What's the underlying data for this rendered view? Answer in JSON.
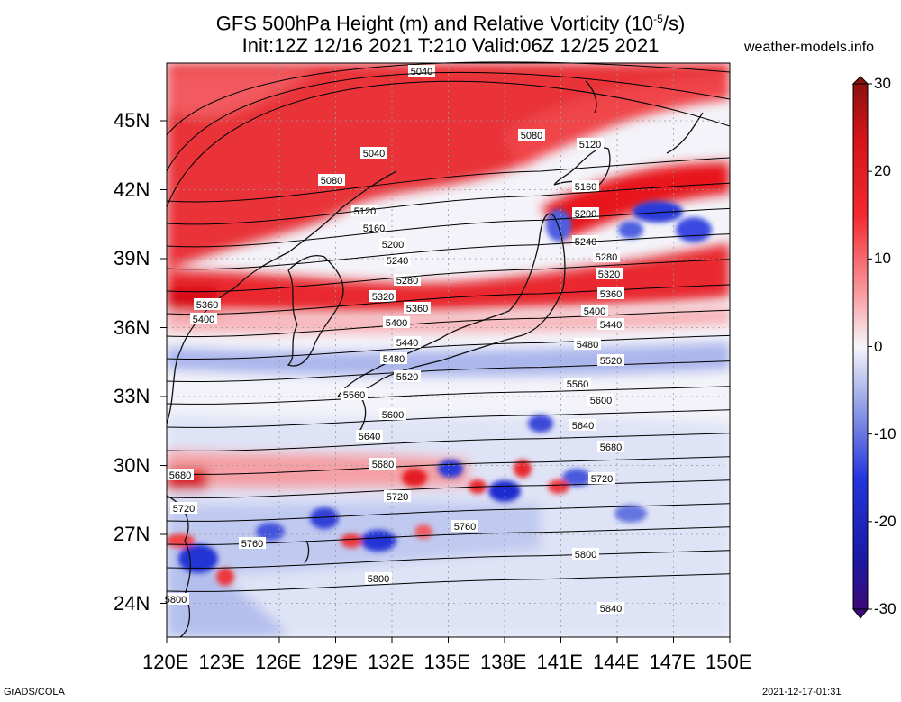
{
  "title_line1": "GFS 500hPa Height (m) and Relative Vorticity (10",
  "title_sup": "-5",
  "title_unit_tail": "/s)",
  "title_line2": "Init:12Z 12/16 2021 T:210 Valid:06Z 12/25 2021",
  "site": "weather-models.info",
  "credit_left": "GrADS/COLA",
  "credit_right": "2021-12-17-01:31",
  "lat_labels": [
    "45N",
    "42N",
    "39N",
    "36N",
    "33N",
    "30N",
    "27N",
    "24N"
  ],
  "lon_labels": [
    "120E",
    "123E",
    "126E",
    "129E",
    "132E",
    "135E",
    "138E",
    "141E",
    "144E",
    "147E",
    "150E"
  ],
  "colorbar_labels": [
    "30",
    "20",
    "10",
    "0",
    "-10",
    "-20",
    "-30"
  ],
  "colors": {
    "red_strong": "#e8141c",
    "red_mid": "#f4787c",
    "red_light": "#fcd4d6",
    "neutral": "#f4f4fa",
    "blue_light": "#cfd6f2",
    "blue_mid": "#6e82dc",
    "blue_strong": "#1c2ad0"
  },
  "contours": [
    {
      "label": "5040"
    },
    {
      "label": "5080"
    },
    {
      "label": "5120"
    },
    {
      "label": "5160"
    },
    {
      "label": "5200"
    },
    {
      "label": "5240"
    },
    {
      "label": "5280"
    },
    {
      "label": "5320"
    },
    {
      "label": "5360"
    },
    {
      "label": "5400"
    },
    {
      "label": "5440"
    },
    {
      "label": "5480"
    },
    {
      "label": "5520"
    },
    {
      "label": "5560"
    },
    {
      "label": "5600"
    },
    {
      "label": "5640"
    },
    {
      "label": "5680"
    },
    {
      "label": "5720"
    },
    {
      "label": "5760"
    },
    {
      "label": "5800"
    },
    {
      "label": "5840"
    }
  ]
}
